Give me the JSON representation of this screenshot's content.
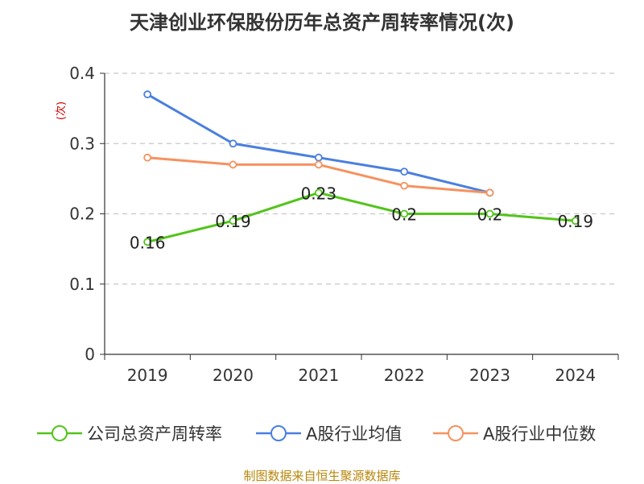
{
  "title": "天津创业环保股份历年总资产周转率情况(次)",
  "source": "制图数据来自恒生聚源数据库",
  "chart_data": {
    "type": "line",
    "title": "天津创业环保股份历年总资产周转率情况(次)",
    "ylabel": "(次)",
    "xlabel": "",
    "categories": [
      "2019",
      "2020",
      "2021",
      "2022",
      "2023",
      "2024"
    ],
    "ylim": [
      0,
      0.4
    ],
    "yticks": [
      "0",
      "0.1",
      "0.2",
      "0.3",
      "0.4"
    ],
    "grid": true,
    "legend_position": "bottom",
    "series": [
      {
        "name": "公司总资产周转率",
        "color": "#52c41a",
        "values": [
          0.16,
          0.19,
          0.23,
          0.2,
          0.2,
          0.19
        ],
        "labels": [
          "0.16",
          "0.19",
          "0.23",
          "0.2",
          "0.2",
          "0.19"
        ]
      },
      {
        "name": "A股行业均值",
        "color": "#4a7fe0",
        "values": [
          0.37,
          0.3,
          0.28,
          0.26,
          0.23,
          null
        ]
      },
      {
        "name": "A股行业中位数",
        "color": "#f5925f",
        "values": [
          0.28,
          0.27,
          0.27,
          0.24,
          0.23,
          null
        ]
      }
    ]
  }
}
